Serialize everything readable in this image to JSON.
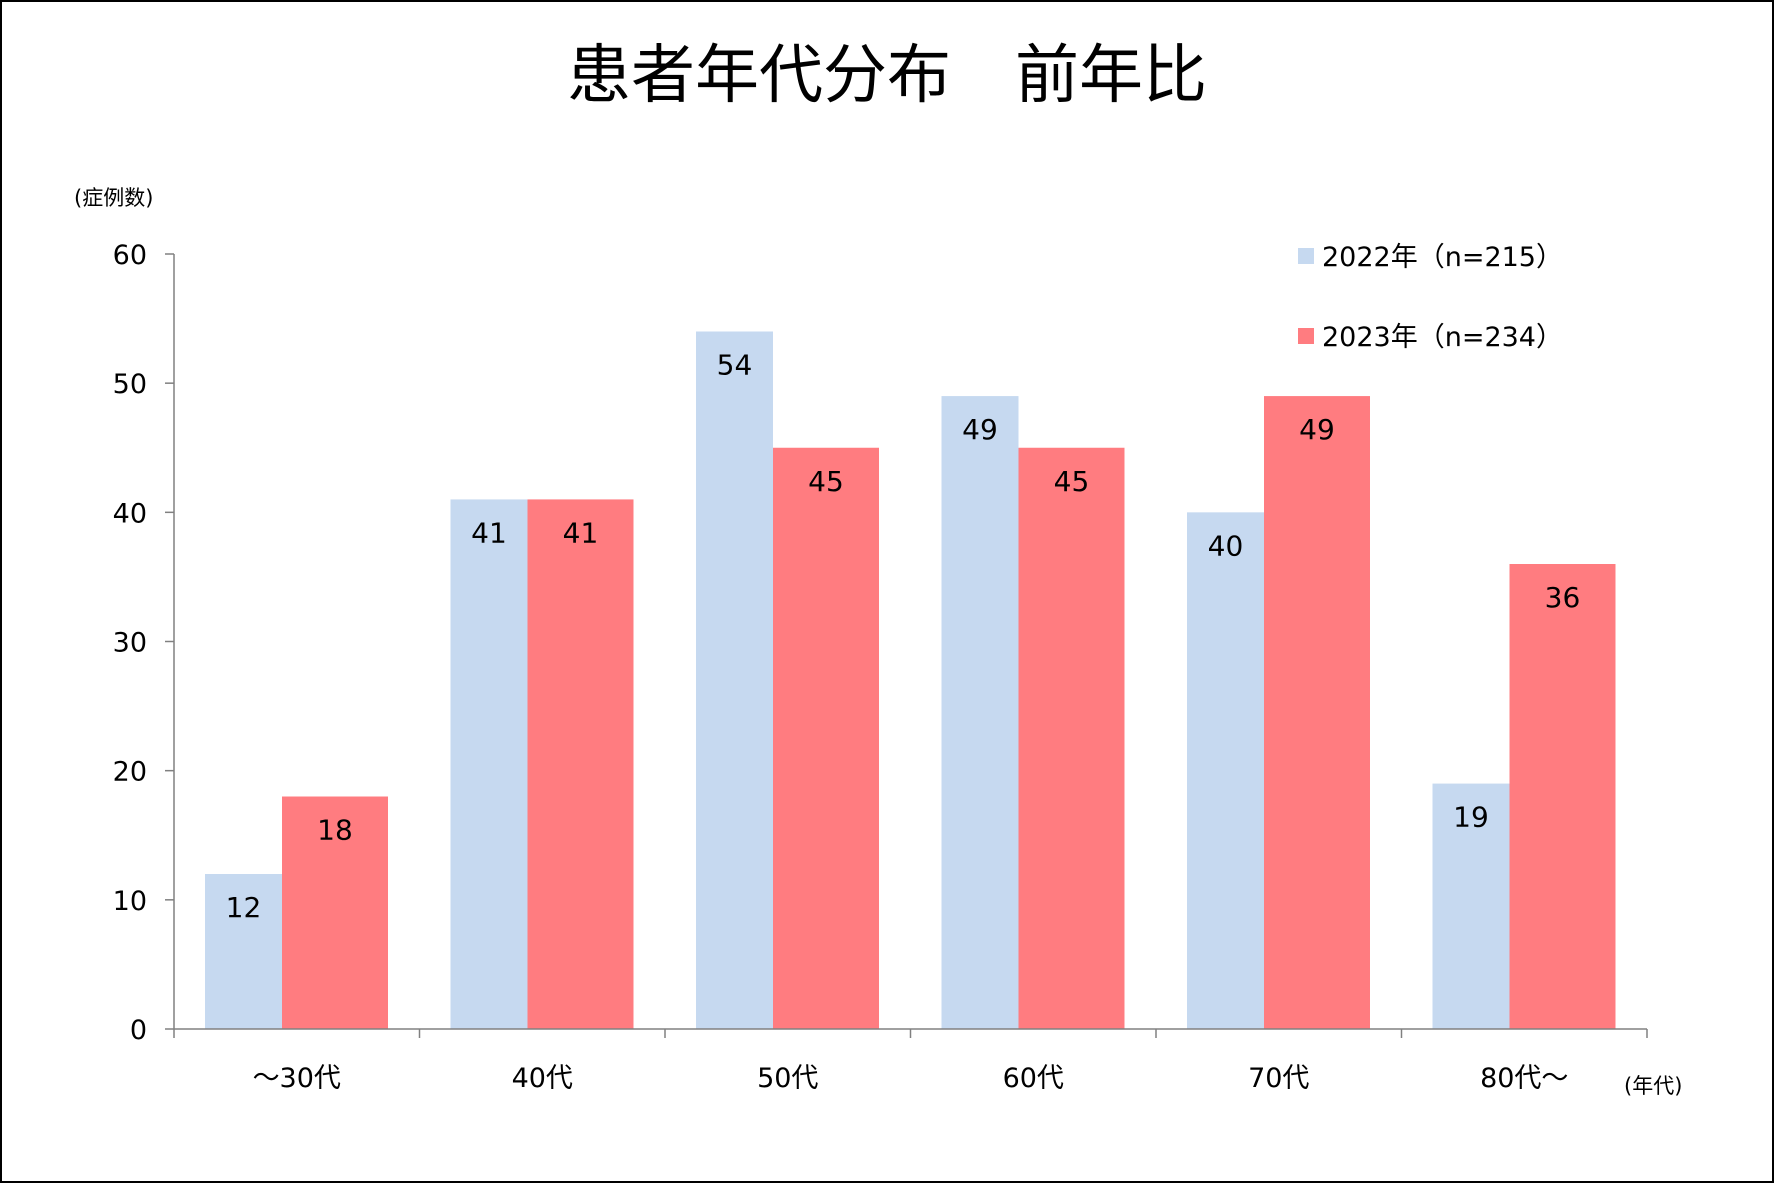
{
  "chart_data": {
    "type": "bar",
    "title": "患者年代分布　前年比",
    "ylabel": "(症例数)",
    "xlabel": "(年代)",
    "categories": [
      "～30代",
      "40代",
      "50代",
      "60代",
      "70代",
      "80代～"
    ],
    "ylim": [
      0,
      60
    ],
    "yticks": [
      0,
      10,
      20,
      30,
      40,
      50,
      60
    ],
    "legend_position": "top-right",
    "series": [
      {
        "name": "2022年（n=215）",
        "color": "#c6d9f0",
        "values": [
          12,
          41,
          54,
          49,
          40,
          19
        ]
      },
      {
        "name": "2023年（n=234）",
        "color": "#ff7c80",
        "values": [
          18,
          41,
          45,
          45,
          49,
          36
        ]
      }
    ]
  }
}
